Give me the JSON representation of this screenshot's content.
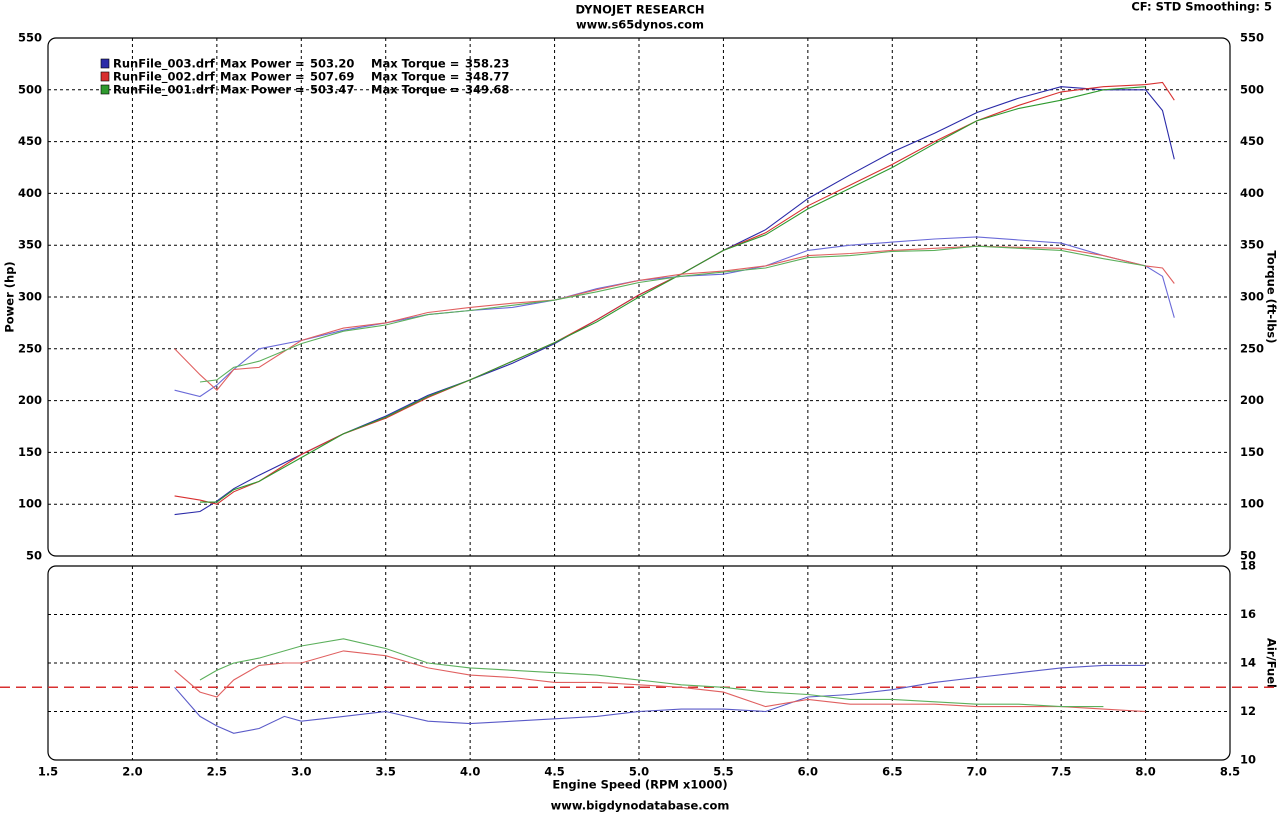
{
  "header": {
    "title": "DYNOJET RESEARCH",
    "subtitle": "www.s65dynos.com",
    "settings": "CF: STD  Smoothing: 5",
    "footer": "www.bigdynodatabase.com"
  },
  "chart_data": [
    {
      "type": "line",
      "ylabel": "Power (hp)",
      "y2label": "Torque (ft-lbs)",
      "x": [
        2.25,
        2.4,
        2.5,
        2.6,
        2.75,
        3.0,
        3.25,
        3.5,
        3.75,
        4.0,
        4.25,
        4.5,
        4.75,
        5.0,
        5.25,
        5.5,
        5.75,
        6.0,
        6.25,
        6.5,
        6.75,
        7.0,
        7.25,
        7.5,
        7.75,
        8.0,
        8.1,
        8.17
      ],
      "xlim": [
        1.5,
        8.5
      ],
      "xticks": [
        2,
        2.5,
        3,
        3.5,
        4,
        4.5,
        5,
        5.5,
        6,
        6.5,
        7,
        7.5,
        8
      ],
      "ylim": [
        50,
        550
      ],
      "yticks": [
        50,
        100,
        150,
        200,
        250,
        300,
        350,
        400,
        450,
        500,
        550
      ],
      "y2lim": [
        50,
        550
      ],
      "y2ticks": [
        50,
        100,
        150,
        200,
        250,
        300,
        350,
        400,
        450,
        500,
        550
      ],
      "grid": true,
      "legend_power_label": "Max Power =",
      "legend_torque_label": "Max Torque =",
      "legend": [
        {
          "name": "RunFile_003.drf",
          "color": "#2a2aa8",
          "max_power": "503.20",
          "max_torque": "358.23"
        },
        {
          "name": "RunFile_002.drf",
          "color": "#d83030",
          "max_power": "507.69",
          "max_torque": "348.77"
        },
        {
          "name": "RunFile_001.drf",
          "color": "#2f9a2f",
          "max_power": "503.47",
          "max_torque": "349.68"
        }
      ],
      "series": [
        {
          "color": "#2a2aa8",
          "values": [
            90,
            93,
            103,
            115,
            128,
            148,
            168,
            185,
            205,
            220,
            236,
            255,
            278,
            302,
            322,
            345,
            365,
            395,
            418,
            440,
            458,
            478,
            492,
            503,
            500,
            500,
            480,
            433
          ]
        },
        {
          "color": "#d83030",
          "values": [
            108,
            104,
            100,
            112,
            122,
            148,
            168,
            183,
            203,
            220,
            238,
            256,
            278,
            302,
            322,
            345,
            362,
            388,
            408,
            428,
            450,
            470,
            485,
            498,
            503,
            505,
            507,
            490
          ]
        },
        {
          "color": "#2f9a2f",
          "values": [
            null,
            102,
            102,
            114,
            122,
            145,
            168,
            184,
            204,
            220,
            238,
            256,
            276,
            300,
            322,
            345,
            360,
            385,
            405,
            425,
            448,
            470,
            482,
            490,
            500,
            503,
            null,
            null
          ]
        },
        {
          "color": "#6a6ad8",
          "axis": "y2",
          "values": [
            210,
            204,
            215,
            230,
            250,
            258,
            268,
            275,
            283,
            287,
            290,
            297,
            308,
            316,
            320,
            322,
            330,
            345,
            350,
            353,
            356,
            358,
            355,
            352,
            340,
            330,
            320,
            280
          ]
        },
        {
          "color": "#e06060",
          "axis": "y2",
          "values": [
            250,
            225,
            210,
            230,
            232,
            258,
            270,
            275,
            285,
            290,
            294,
            297,
            307,
            316,
            322,
            325,
            330,
            340,
            342,
            345,
            347,
            349,
            348,
            347,
            340,
            330,
            328,
            313
          ]
        },
        {
          "color": "#5cb05c",
          "axis": "y2",
          "values": [
            null,
            218,
            220,
            232,
            238,
            255,
            267,
            273,
            283,
            287,
            292,
            297,
            305,
            314,
            320,
            324,
            328,
            338,
            340,
            344,
            345,
            349,
            347,
            345,
            337,
            330,
            null,
            null
          ]
        }
      ]
    },
    {
      "type": "line",
      "xlabel": "Engine Speed (RPM x1000)",
      "ylabel": "Air/Fuel",
      "x": [
        2.25,
        2.4,
        2.5,
        2.6,
        2.75,
        2.9,
        3.0,
        3.25,
        3.5,
        3.75,
        4.0,
        4.25,
        4.5,
        4.75,
        5.0,
        5.25,
        5.5,
        5.75,
        6.0,
        6.25,
        6.5,
        6.75,
        7.0,
        7.25,
        7.5,
        7.75,
        8.0
      ],
      "xlim": [
        1.5,
        8.5
      ],
      "xticks": [
        {
          "value": 1.5,
          "label": "1.5"
        },
        {
          "value": 2,
          "label": "2.0"
        },
        {
          "value": 2.5,
          "label": "2.5"
        },
        {
          "value": 3,
          "label": "3.0"
        },
        {
          "value": 3.5,
          "label": "3.5"
        },
        {
          "value": 4,
          "label": "4.0"
        },
        {
          "value": 4.5,
          "label": "4.5"
        },
        {
          "value": 5,
          "label": "5.0"
        },
        {
          "value": 5.5,
          "label": "5.5"
        },
        {
          "value": 6,
          "label": "6.0"
        },
        {
          "value": 6.5,
          "label": "6.5"
        },
        {
          "value": 7,
          "label": "7.0"
        },
        {
          "value": 7.5,
          "label": "7.5"
        },
        {
          "value": 8,
          "label": "8.0"
        },
        {
          "value": 8.5,
          "label": "8.5"
        }
      ],
      "ylim": [
        10,
        18
      ],
      "yticks": [
        10,
        12,
        14,
        16,
        18
      ],
      "grid": true,
      "reference_line": 13,
      "reference_color": "#d83030",
      "series": [
        {
          "color": "#5a5ac8",
          "values": [
            13.0,
            11.8,
            11.4,
            11.1,
            11.3,
            11.8,
            11.6,
            11.8,
            12.0,
            11.6,
            11.5,
            11.6,
            11.7,
            11.8,
            12.0,
            12.1,
            12.1,
            12.0,
            12.6,
            12.7,
            12.9,
            13.2,
            13.4,
            13.6,
            13.8,
            13.9,
            13.9
          ]
        },
        {
          "color": "#e06060",
          "values": [
            13.7,
            12.8,
            12.6,
            13.3,
            13.9,
            14.0,
            14.0,
            14.5,
            14.3,
            13.8,
            13.5,
            13.4,
            13.2,
            13.2,
            13.1,
            13.0,
            12.8,
            12.2,
            12.5,
            12.3,
            12.3,
            12.3,
            12.2,
            12.2,
            12.2,
            12.1,
            12.0
          ]
        },
        {
          "color": "#5cb05c",
          "values": [
            null,
            13.3,
            13.7,
            14.0,
            14.2,
            14.5,
            14.7,
            15.0,
            14.6,
            14.0,
            13.8,
            13.7,
            13.6,
            13.5,
            13.3,
            13.1,
            13.0,
            12.8,
            12.7,
            12.5,
            12.5,
            12.4,
            12.3,
            12.3,
            12.2,
            12.2,
            null
          ]
        }
      ]
    }
  ]
}
